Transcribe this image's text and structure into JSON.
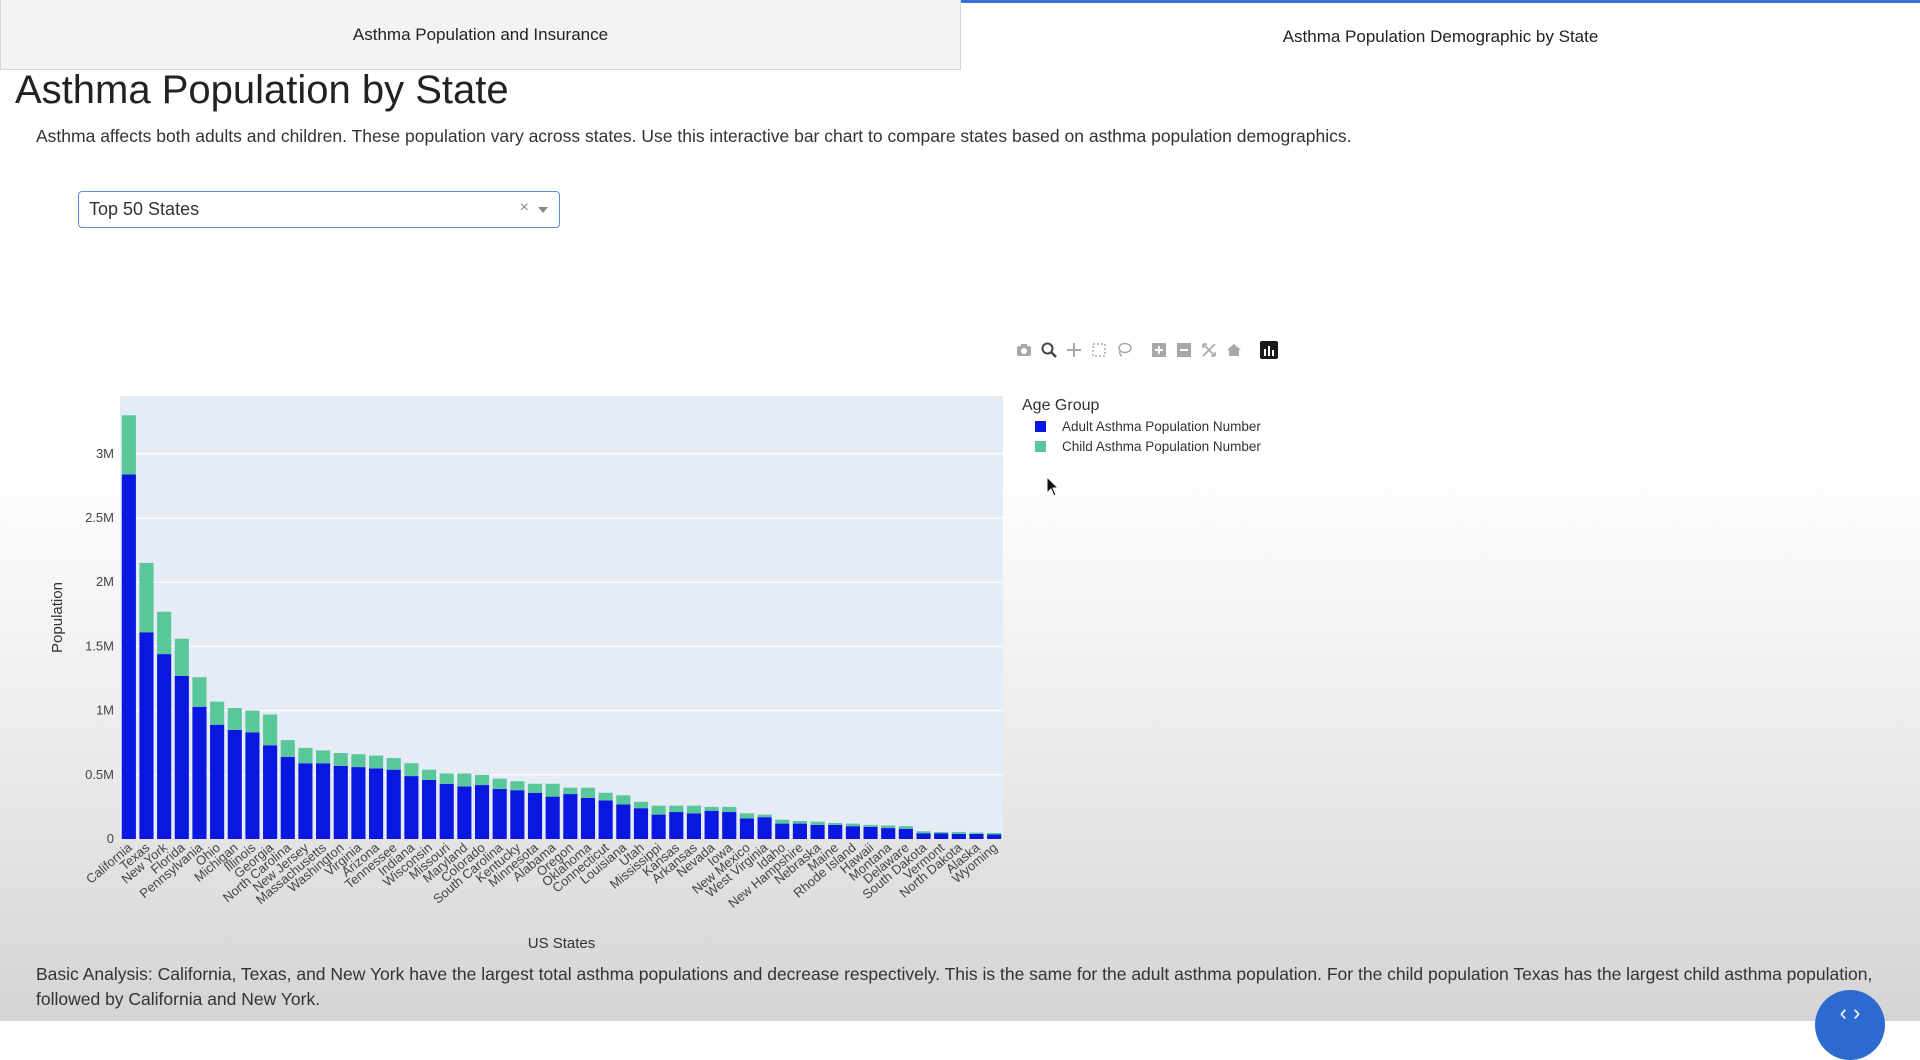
{
  "tabs": [
    {
      "label": "Asthma Population and Insurance",
      "active": false
    },
    {
      "label": "Asthma Population Demographic by State",
      "active": true
    }
  ],
  "page": {
    "title": "Asthma Population by State",
    "description": "Asthma affects both adults and children. These population vary across states. Use this interactive bar chart to compare states based on asthma population demographics.",
    "analysis": "Basic Analysis: California, Texas, and New York have the largest total asthma populations and decrease respectively. This is the same for the adult asthma population. For the child population Texas has the largest child asthma population, followed by California and New York."
  },
  "dropdown": {
    "value": "Top 50 States",
    "clear": "×"
  },
  "modebar": {
    "icons": [
      "camera-icon",
      "zoom-icon",
      "pan-icon",
      "box-select-icon",
      "lasso-icon",
      "zoom-in-icon",
      "zoom-out-icon",
      "autoscale-icon",
      "reset-axes-icon",
      "plotly-logo-icon"
    ]
  },
  "colors": {
    "adult": "#0a17e0",
    "child": "#59c79a",
    "plot_bg": "#e5ecf6",
    "accent": "#3b6fd8"
  },
  "chart_data": {
    "type": "bar",
    "barmode": "stack",
    "xlabel": "US States",
    "ylabel": "Population",
    "ylim": [
      0,
      3450000
    ],
    "yticks": [
      0,
      500000,
      1000000,
      1500000,
      2000000,
      2500000,
      3000000
    ],
    "ytick_labels": [
      "0",
      "0.5M",
      "1M",
      "1.5M",
      "2M",
      "2.5M",
      "3M"
    ],
    "legend": {
      "title": "Age Group",
      "position": "right"
    },
    "categories": [
      "California",
      "Texas",
      "New York",
      "Florida",
      "Pennsylvania",
      "Ohio",
      "Michigan",
      "Illinois",
      "Georgia",
      "North Carolina",
      "New Jersey",
      "Massachusetts",
      "Washington",
      "Virginia",
      "Arizona",
      "Tennessee",
      "Indiana",
      "Wisconsin",
      "Missouri",
      "Maryland",
      "Colorado",
      "South Carolina",
      "Kentucky",
      "Minnesota",
      "Alabama",
      "Oregon",
      "Oklahoma",
      "Connecticut",
      "Louisiana",
      "Utah",
      "Mississippi",
      "Kansas",
      "Arkansas",
      "Nevada",
      "Iowa",
      "New Mexico",
      "West Virginia",
      "Idaho",
      "New Hampshire",
      "Nebraska",
      "Maine",
      "Rhode Island",
      "Hawaii",
      "Montana",
      "Delaware",
      "South Dakota",
      "Vermont",
      "North Dakota",
      "Alaska",
      "Wyoming"
    ],
    "series": [
      {
        "name": "Adult Asthma Population Number",
        "values": [
          2840000,
          1610000,
          1440000,
          1270000,
          1030000,
          890000,
          850000,
          830000,
          730000,
          640000,
          590000,
          590000,
          570000,
          560000,
          550000,
          540000,
          490000,
          460000,
          430000,
          410000,
          420000,
          390000,
          380000,
          360000,
          330000,
          350000,
          320000,
          300000,
          270000,
          240000,
          190000,
          210000,
          200000,
          220000,
          210000,
          160000,
          170000,
          120000,
          120000,
          110000,
          110000,
          100000,
          95000,
          85000,
          80000,
          45000,
          45000,
          40000,
          40000,
          35000
        ]
      },
      {
        "name": "Child Asthma  Population Number",
        "values": [
          460000,
          540000,
          330000,
          290000,
          230000,
          180000,
          170000,
          170000,
          240000,
          130000,
          120000,
          100000,
          100000,
          100000,
          100000,
          90000,
          100000,
          80000,
          80000,
          100000,
          80000,
          80000,
          70000,
          70000,
          100000,
          50000,
          80000,
          60000,
          70000,
          50000,
          70000,
          50000,
          60000,
          30000,
          40000,
          40000,
          20000,
          30000,
          20000,
          25000,
          15000,
          20000,
          15000,
          20000,
          20000,
          15000,
          10000,
          15000,
          10000,
          12000
        ]
      }
    ]
  }
}
